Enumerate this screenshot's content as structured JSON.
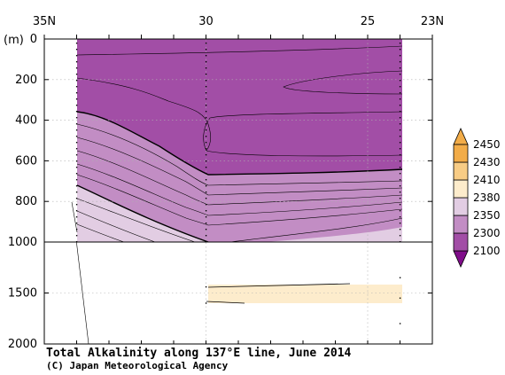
{
  "chart_data": {
    "type": "contour",
    "title": "Total Alkalinity along 137°E line, June 2014",
    "credit": "(C) Japan Meteorological Agency",
    "ylabel": "(m)",
    "x_ticks": [
      {
        "value": 35,
        "label": "35N"
      },
      {
        "value": 30,
        "label": "30"
      },
      {
        "value": 25,
        "label": "25"
      },
      {
        "value": 23,
        "label": "23N"
      }
    ],
    "y_ticks_upper": [
      {
        "value": 0,
        "label": "0"
      },
      {
        "value": 200,
        "label": "200"
      },
      {
        "value": 400,
        "label": "400"
      },
      {
        "value": 600,
        "label": "600"
      },
      {
        "value": 800,
        "label": "800"
      },
      {
        "value": 1000,
        "label": "1000"
      }
    ],
    "y_ticks_lower": [
      {
        "value": 1500,
        "label": "1500"
      },
      {
        "value": 2000,
        "label": "2000"
      }
    ],
    "xlim": [
      35,
      23
    ],
    "ylim_upper": [
      0,
      1000
    ],
    "ylim_lower": [
      1000,
      2000
    ],
    "data_extent_lat": [
      34,
      24
    ],
    "stations_lat": [
      34,
      30,
      24
    ],
    "colorbar": {
      "levels": [
        {
          "label": "2100",
          "color": "#800d8a"
        },
        {
          "label": "2300",
          "color": "#a24ea6"
        },
        {
          "label": "2350",
          "color": "#c28dc4"
        },
        {
          "label": "2380",
          "color": "#e2cde3"
        },
        {
          "label": "2410",
          "color": "#fdeccc"
        },
        {
          "label": "2430",
          "color": "#f8cc85"
        },
        {
          "label": "2450",
          "color": "#f2ac48"
        }
      ],
      "tip_top_color": "#f2ac48",
      "tip_bottom_color": "#800d8a"
    },
    "colors": {
      "band_2300": "#a24ea6",
      "band_2350": "#c28dc4",
      "band_2380": "#e2cde3",
      "band_2410": "#fdeccc",
      "contour": "#000000",
      "grid": "#b0b0b0"
    },
    "regions": [
      {
        "band": "2300",
        "depth_range": [
          0,
          1000
        ],
        "note": "surface layer down to thick contour"
      },
      {
        "band": "2350",
        "boundary_depth_at_lat": [
          [
            34,
            350
          ],
          [
            30,
            660
          ],
          [
            24,
            640
          ]
        ]
      },
      {
        "band": "2380",
        "boundary_depth_at_lat": [
          [
            34,
            720
          ],
          [
            30,
            1000
          ],
          [
            24,
            930
          ]
        ]
      },
      {
        "band": "2410",
        "lat_range": [
          30,
          24
        ],
        "depth_range": [
          1430,
          1600
        ]
      }
    ]
  }
}
